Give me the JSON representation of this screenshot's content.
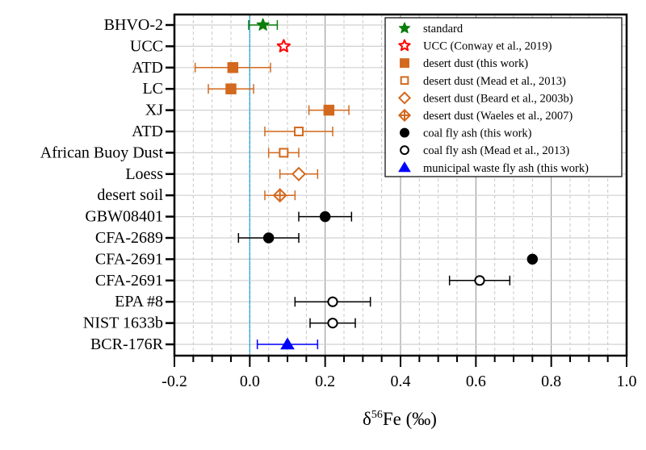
{
  "chart_data": {
    "type": "scatter",
    "title": "",
    "xlabel": "δ56Fe (‰)",
    "xlabel_parts": {
      "delta": "δ",
      "sup": "56",
      "rest": "Fe (‰)"
    },
    "ylabel": "",
    "xlim": [
      -0.2,
      1.0
    ],
    "xticks": [
      -0.2,
      0.0,
      0.2,
      0.4,
      0.6,
      0.8,
      1.0
    ],
    "xtick_labels": [
      "-0.2",
      "0.0",
      "0.2",
      "0.4",
      "0.6",
      "0.8",
      "1.0"
    ],
    "minor_step": 0.05,
    "grid": true,
    "reference_line_x": 0.0,
    "reference_line_color": "#29a8e0",
    "legend_position": "top-right",
    "categories": [
      "BHVO-2",
      "UCC",
      "ATD",
      "LC",
      "XJ",
      "ATD",
      "African Buoy Dust",
      "Loess",
      "desert soil",
      "GBW08401",
      "CFA-2689",
      "CFA-2691",
      "CFA-2691",
      "EPA #8",
      "NIST 1633b",
      "BCR-176R"
    ],
    "series": [
      {
        "name": "standard",
        "marker": "star-filled",
        "color": "#0a7d0a",
        "points": [
          {
            "category": "BHVO-2",
            "row": 0,
            "x": 0.035,
            "err": 0.038
          }
        ]
      },
      {
        "name": "UCC (Conway et al., 2019)",
        "marker": "star-open",
        "color": "#ff0000",
        "points": [
          {
            "category": "UCC",
            "row": 1,
            "x": 0.09,
            "err": 0
          }
        ]
      },
      {
        "name": "desert dust (this work)",
        "marker": "square-filled",
        "color": "#d2691e",
        "points": [
          {
            "category": "ATD",
            "row": 2,
            "x": -0.045,
            "err": 0.1
          },
          {
            "category": "LC",
            "row": 3,
            "x": -0.05,
            "err": 0.06
          },
          {
            "category": "XJ",
            "row": 4,
            "x": 0.21,
            "err": 0.053
          }
        ]
      },
      {
        "name": "desert dust (Mead et al., 2013)",
        "marker": "square-open",
        "color": "#d2691e",
        "points": [
          {
            "category": "ATD",
            "row": 5,
            "x": 0.13,
            "err": 0.09
          },
          {
            "category": "African Buoy Dust",
            "row": 6,
            "x": 0.09,
            "err": 0.04
          }
        ]
      },
      {
        "name": "desert dust (Beard et al., 2003b)",
        "marker": "diamond-open",
        "color": "#d2691e",
        "points": [
          {
            "category": "Loess",
            "row": 7,
            "x": 0.13,
            "err": 0.05
          }
        ]
      },
      {
        "name": "desert dust (Waeles et al., 2007)",
        "marker": "diamond-cross",
        "color": "#d2691e",
        "points": [
          {
            "category": "desert soil",
            "row": 8,
            "x": 0.08,
            "err": 0.04
          }
        ]
      },
      {
        "name": "coal fly ash (this work)",
        "marker": "circle-filled",
        "color": "#000000",
        "points": [
          {
            "category": "GBW08401",
            "row": 9,
            "x": 0.2,
            "err": 0.07
          },
          {
            "category": "CFA-2689",
            "row": 10,
            "x": 0.05,
            "err": 0.08
          },
          {
            "category": "CFA-2691",
            "row": 11,
            "x": 0.75,
            "err": 0
          }
        ]
      },
      {
        "name": "coal fly ash (Mead et al., 2013)",
        "marker": "circle-open",
        "color": "#000000",
        "points": [
          {
            "category": "CFA-2691",
            "row": 12,
            "x": 0.61,
            "err": 0.08
          },
          {
            "category": "EPA #8",
            "row": 13,
            "x": 0.22,
            "err": 0.1
          },
          {
            "category": "NIST 1633b",
            "row": 14,
            "x": 0.22,
            "err": 0.06
          }
        ]
      },
      {
        "name": "municipal waste fly ash (this work)",
        "marker": "triangle-filled",
        "color": "#0000ff",
        "points": [
          {
            "category": "BCR-176R",
            "row": 15,
            "x": 0.1,
            "err": 0.08
          }
        ]
      }
    ]
  }
}
